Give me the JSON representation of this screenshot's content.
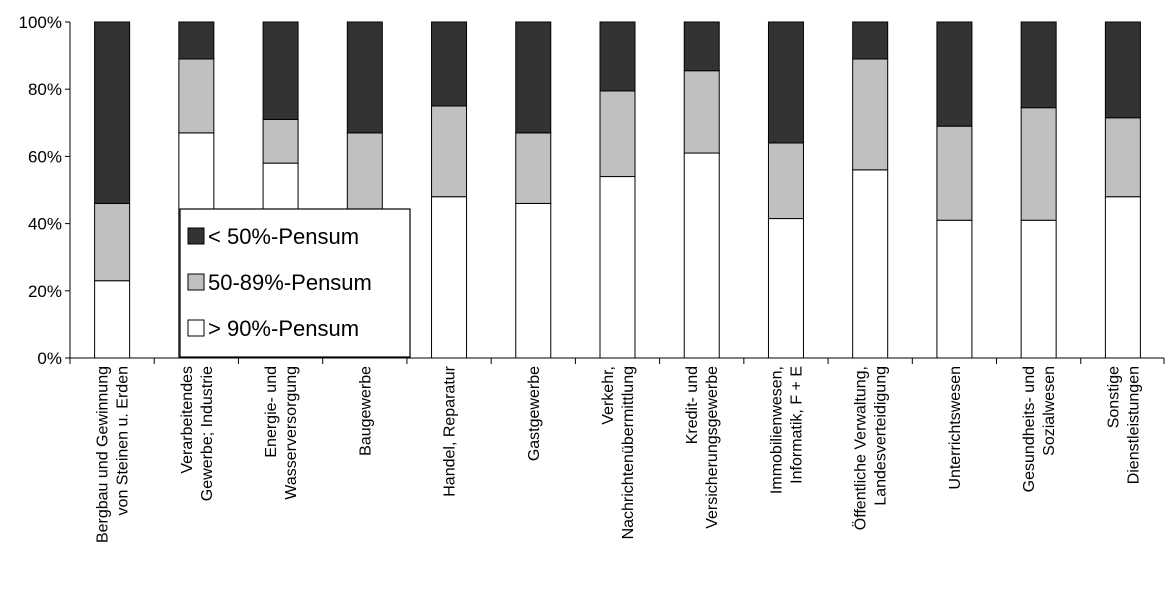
{
  "chart_data": {
    "type": "bar",
    "stacked": true,
    "title": "",
    "xlabel": "",
    "ylabel": "",
    "ylim": [
      0,
      100
    ],
    "yticks": [
      "0%",
      "20%",
      "40%",
      "60%",
      "80%",
      "100%"
    ],
    "grid": false,
    "legend_position": "left-center, over bars",
    "categories": [
      [
        "Bergbau und Gewinnung",
        "von Steinen u. Erden"
      ],
      [
        "Verarbeitendes",
        "Gewerbe; Industrie"
      ],
      [
        "Energie- und",
        "Wasserversorgung"
      ],
      [
        "Baugewerbe"
      ],
      [
        "Handel, Reparatur"
      ],
      [
        "Gastgewerbe"
      ],
      [
        "Verkehr,",
        "Nachrichtenübermittlung"
      ],
      [
        "Kredit- und",
        "Versicherungsgewerbe"
      ],
      [
        "Immobilienwesen,",
        "Informatik, F + E"
      ],
      [
        "Öffentliche Verwaltung,",
        "Landesverteidigung"
      ],
      [
        "Unterrichtswesen"
      ],
      [
        "Gesundheits- und",
        "Sozialwesen"
      ],
      [
        "Sonstige",
        "Dienstleistungen"
      ]
    ],
    "series": [
      {
        "name": "> 90%-Pensum",
        "color": "#ffffff",
        "values": [
          23,
          67,
          58,
          41,
          48,
          46,
          54,
          61,
          41.5,
          56,
          41,
          41,
          48
        ]
      },
      {
        "name": "50-89%-Pensum",
        "color": "#c0c0c0",
        "values": [
          23,
          22,
          13,
          26,
          27,
          21,
          25.5,
          24.5,
          22.5,
          33,
          28,
          33.5,
          23.5
        ]
      },
      {
        "name": "< 50%-Pensum",
        "color": "#333333",
        "values": [
          54,
          11,
          29,
          33,
          25,
          33,
          20.5,
          14.5,
          36,
          11,
          31,
          25.5,
          28.5
        ]
      }
    ],
    "legend_order": [
      "< 50%-Pensum",
      "50-89%-Pensum",
      "> 90%-Pensum"
    ]
  }
}
